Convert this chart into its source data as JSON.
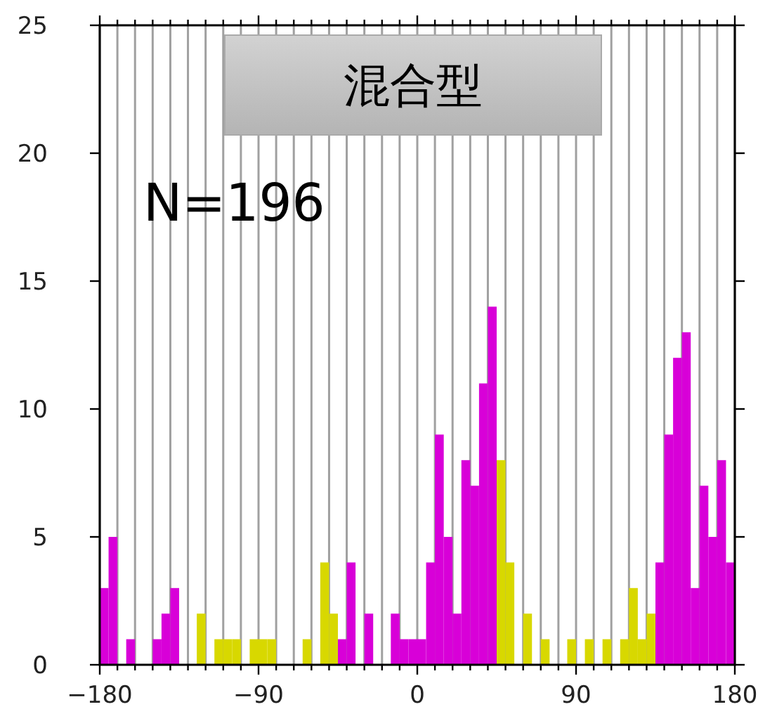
{
  "chart_data": {
    "type": "histogram",
    "title": "混合型",
    "annotations": [
      "N=196"
    ],
    "bins": [
      -180,
      -175,
      -170,
      -165,
      -160,
      -155,
      -150,
      -145,
      -140,
      -135,
      -130,
      -125,
      -120,
      -115,
      -110,
      -105,
      -100,
      -95,
      -90,
      -85,
      -80,
      -75,
      -70,
      -65,
      -60,
      -55,
      -50,
      -45,
      -40,
      -35,
      -30,
      -25,
      -20,
      -15,
      -10,
      -5,
      0,
      5,
      10,
      15,
      20,
      25,
      30,
      35,
      40,
      45,
      50,
      55,
      60,
      65,
      70,
      75,
      80,
      85,
      90,
      95,
      100,
      105,
      110,
      115,
      120,
      125,
      130,
      135,
      140,
      145,
      150,
      155,
      160,
      165,
      170,
      175,
      180
    ],
    "values": [
      3,
      5,
      0,
      1,
      0,
      0,
      1,
      2,
      3,
      0,
      0,
      2,
      0,
      1,
      1,
      1,
      0,
      1,
      1,
      1,
      0,
      0,
      0,
      1,
      0,
      4,
      2,
      1,
      4,
      0,
      2,
      0,
      0,
      2,
      1,
      1,
      1,
      4,
      9,
      5,
      2,
      8,
      7,
      11,
      14,
      8,
      4,
      0,
      2,
      0,
      1,
      0,
      0,
      1,
      0,
      1,
      0,
      1,
      0,
      1,
      3,
      1,
      2,
      4,
      9,
      12,
      13,
      3,
      7,
      5,
      8,
      4
    ],
    "colors": [
      "#d800d8",
      "#d800d8",
      "#d800d8",
      "#d800d8",
      "#d800d8",
      "#d800d8",
      "#d800d8",
      "#d800d8",
      "#d800d8",
      "#d800d8",
      "#d8d800",
      "#d8d800",
      "#d8d800",
      "#d8d800",
      "#d8d800",
      "#d8d800",
      "#d8d800",
      "#d8d800",
      "#d8d800",
      "#d8d800",
      "#d8d800",
      "#d8d800",
      "#d8d800",
      "#d8d800",
      "#d8d800",
      "#d8d800",
      "#d8d800",
      "#d800d8",
      "#d800d8",
      "#d800d8",
      "#d800d8",
      "#d800d8",
      "#d800d8",
      "#d800d8",
      "#d800d8",
      "#d800d8",
      "#d800d8",
      "#d800d8",
      "#d800d8",
      "#d800d8",
      "#d800d8",
      "#d800d8",
      "#d800d8",
      "#d800d8",
      "#d800d8",
      "#d8d800",
      "#d8d800",
      "#d8d800",
      "#d8d800",
      "#d8d800",
      "#d8d800",
      "#d8d800",
      "#d8d800",
      "#d8d800",
      "#d8d800",
      "#d8d800",
      "#d8d800",
      "#d8d800",
      "#d8d800",
      "#d8d800",
      "#d8d800",
      "#d8d800",
      "#d8d800",
      "#d800d8",
      "#d800d8",
      "#d800d8",
      "#d800d8",
      "#d800d8",
      "#d800d8",
      "#d800d8",
      "#d800d8",
      "#d800d8"
    ],
    "xlim": [
      -180,
      180
    ],
    "ylim": [
      0,
      25
    ],
    "xticks": [
      {
        "value": -180,
        "label": "−180"
      },
      {
        "value": -170,
        "label": null
      },
      {
        "value": -160,
        "label": null
      },
      {
        "value": -150,
        "label": null
      },
      {
        "value": -140,
        "label": null
      },
      {
        "value": -130,
        "label": null
      },
      {
        "value": -120,
        "label": null
      },
      {
        "value": -110,
        "label": null
      },
      {
        "value": -100,
        "label": null
      },
      {
        "value": -90,
        "label": "−90"
      },
      {
        "value": -80,
        "label": null
      },
      {
        "value": -70,
        "label": null
      },
      {
        "value": -60,
        "label": null
      },
      {
        "value": -50,
        "label": null
      },
      {
        "value": -40,
        "label": null
      },
      {
        "value": -30,
        "label": null
      },
      {
        "value": -20,
        "label": null
      },
      {
        "value": -10,
        "label": null
      },
      0,
      {
        "value": 10,
        "label": null
      },
      {
        "value": 20,
        "label": null
      },
      {
        "value": 30,
        "label": null
      },
      {
        "value": 40,
        "label": null
      },
      {
        "value": 50,
        "label": null
      },
      {
        "value": 60,
        "label": null
      },
      {
        "value": 70,
        "label": null
      },
      {
        "value": 80,
        "label": null
      },
      90,
      {
        "value": 100,
        "label": null
      },
      {
        "value": 110,
        "label": null
      },
      {
        "value": 120,
        "label": null
      },
      {
        "value": 130,
        "label": null
      },
      {
        "value": 140,
        "label": null
      },
      {
        "value": 150,
        "label": null
      },
      {
        "value": 160,
        "label": null
      },
      {
        "value": 170,
        "label": null
      },
      180
    ],
    "yticks": [
      0,
      5,
      10,
      15,
      20,
      25
    ],
    "grid": "x"
  }
}
